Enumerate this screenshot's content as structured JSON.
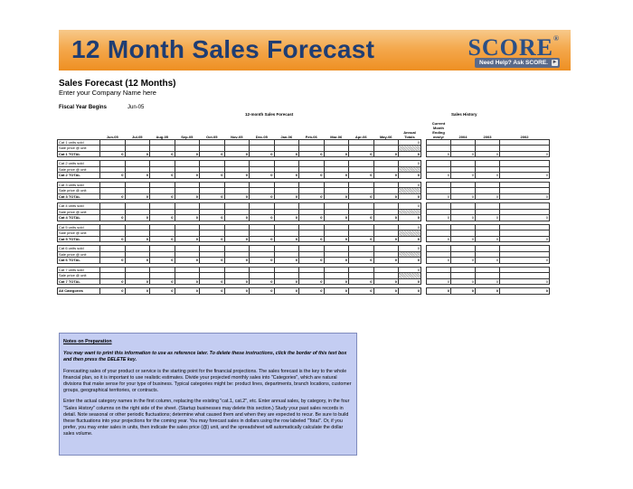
{
  "banner": {
    "title": "12 Month Sales Forecast",
    "logo": "SCORE",
    "logo_mark": "®",
    "help_button": "Need Help? Ask SCORE.",
    "help_arrow": "►"
  },
  "page": {
    "heading": "Sales Forecast (12 Months)",
    "company": "Enter your Company Name here",
    "fiscal_year_label": "Fiscal Year Begins",
    "fiscal_year_value": "Jun-05"
  },
  "forecast": {
    "caption": "12-month Sales Forecast",
    "months": [
      "Jun-05",
      "Jul-05",
      "Aug-05",
      "Sep-05",
      "Oct-05",
      "Nov-05",
      "Dec-05",
      "Jan-06",
      "Feb-06",
      "Mar-06",
      "Apr-06",
      "May-06"
    ],
    "annual_header": "Annual Totals",
    "categories": [
      {
        "units": "Cat 1 units sold",
        "price": "Sale price @ unit",
        "total": "Cat 1 TOTAL"
      },
      {
        "units": "Cat 2 units sold",
        "price": "Sale price @ unit",
        "total": "Cat 2 TOTAL"
      },
      {
        "units": "Cat 3 units sold",
        "price": "Sale price @ unit",
        "total": "Cat 3 TOTAL"
      },
      {
        "units": "Cat 4 units sold",
        "price": "Sale price @ unit",
        "total": "Cat 4 TOTAL"
      },
      {
        "units": "Cat 5 units sold",
        "price": "Sale price @ unit",
        "total": "Cat 5 TOTAL"
      },
      {
        "units": "Cat 6 units sold",
        "price": "Sale price @ unit",
        "total": "Cat 6 TOTAL"
      },
      {
        "units": "Cat 7 units sold",
        "price": "Sale price @ unit",
        "total": "Cat 7 TOTAL"
      }
    ],
    "all_label": "All Categories",
    "zero": "0"
  },
  "history": {
    "caption": "Sales History",
    "headers": [
      "Current Month Ending mm/yr",
      "2004",
      "2003",
      "2002"
    ],
    "zero": "0"
  },
  "notes": {
    "title": "Notes on Preparation",
    "instruction": "You may want to print this information to use as reference later. To delete these instructions, click the border of this text box and then press the DELETE key.",
    "p1": "Forecasting sales of your product or service is the starting point for the financial projections. The sales forecast is the key to the whole financial plan, so it is important to use realistic estimates. Divide your projected monthly sales into \"Categories\", which are natural divisions that make sense for your type of business. Typical categories might be: product lines, departments, branch locations, customer groups, geographical territories, or contracts.",
    "p2": "Enter the actual category names in the first column, replacing the existing \"cat.1, cat.2\", etc. Enter annual sales, by category, in the four \"Sales History\" columns on the right side of the sheet. (Startup businesses may delete this section.) Study your past sales records in detail. Note seasonal or other periodic fluctuations; determine what caused them and when they are expected to recur. Be sure to build these fluctuations into your projections for the coming year. You may forecast sales in dollars using the row labeled \"Total\". Or, if you prefer, you may enter sales in units, then indicate the sales price (@) unit, and the spreadsheet will automatically calculate the dollar sales volume."
  }
}
